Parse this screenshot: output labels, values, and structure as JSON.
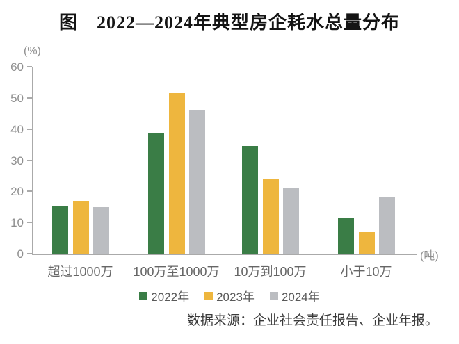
{
  "title": "图　2022—2024年典型房企耗水总量分布",
  "source": "数据来源：企业社会责任报告、企业年报。",
  "chart_data": {
    "type": "bar",
    "title": "图　2022—2024年典型房企耗水总量分布",
    "xlabel": "",
    "ylabel": "(%)",
    "x_unit_label": "(吨)",
    "y_unit_label": "(%)",
    "categories": [
      "超过1000万",
      "100万至1000万",
      "10万到100万",
      "小于10万"
    ],
    "series": [
      {
        "name": "2022年",
        "color": "#3A7D46",
        "values": [
          15.5,
          38.5,
          34.5,
          11.5
        ]
      },
      {
        "name": "2023年",
        "color": "#EEB63E",
        "values": [
          17,
          51.5,
          24,
          7
        ]
      },
      {
        "name": "2024年",
        "color": "#BBBDC1",
        "values": [
          15,
          46,
          21,
          18
        ]
      }
    ],
    "ylim": [
      0,
      60
    ],
    "yticks": [
      0,
      10,
      20,
      30,
      40,
      50,
      60
    ],
    "grid": false,
    "legend_position": "bottom"
  },
  "colors": {
    "axis_line": "#AAAAAA",
    "tick_text": "#8E8E8E",
    "category_text": "#666666",
    "legend_text": "#595959",
    "source_text": "#3A3A3A",
    "title_text": "#141414"
  }
}
